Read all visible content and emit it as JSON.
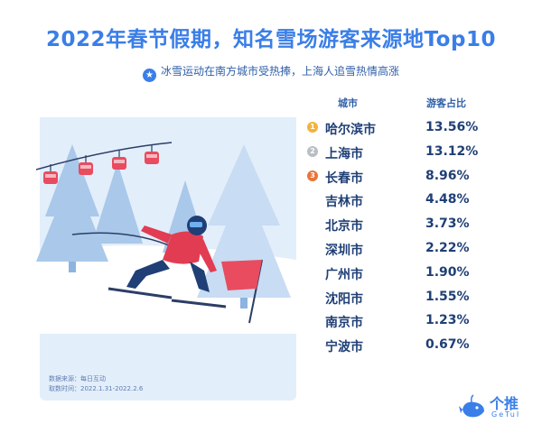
{
  "title": "2022年春节假期，知名雪场游客来源地Top10",
  "subtitle": "冰雪运动在南方城市受热捧，上海人追雪热情高涨",
  "colors": {
    "accent": "#3a7ee8",
    "dark_text": "#1f3f76",
    "gold": "#f2b33d",
    "silver": "#b9bec6",
    "bronze": "#e8753a"
  },
  "chart_data": {
    "type": "table",
    "columns": [
      "城市",
      "游客占比"
    ],
    "rows": [
      {
        "rank": "1",
        "city": "哈尔滨市",
        "share": "13.56%",
        "medal": "gold"
      },
      {
        "rank": "2",
        "city": "上海市",
        "share": "13.12%",
        "medal": "silver"
      },
      {
        "rank": "3",
        "city": "长春市",
        "share": "8.96%",
        "medal": "bronze"
      },
      {
        "rank": "",
        "city": "吉林市",
        "share": "4.48%",
        "medal": ""
      },
      {
        "rank": "",
        "city": "北京市",
        "share": "3.73%",
        "medal": ""
      },
      {
        "rank": "",
        "city": "深圳市",
        "share": "2.22%",
        "medal": ""
      },
      {
        "rank": "",
        "city": "广州市",
        "share": "1.90%",
        "medal": ""
      },
      {
        "rank": "",
        "city": "沈阳市",
        "share": "1.55%",
        "medal": ""
      },
      {
        "rank": "",
        "city": "南京市",
        "share": "1.23%",
        "medal": ""
      },
      {
        "rank": "",
        "city": "宁波市",
        "share": "0.67%",
        "medal": ""
      }
    ]
  },
  "source": {
    "line1": "数据来源：每日互动",
    "line2": "取数时间：2022.1.31-2022.2.6"
  },
  "logo": {
    "brand": "个推",
    "brand_sub": "GeTuI"
  },
  "icons": {
    "subtitle_icon": "star-icon",
    "logo_icon": "whale-icon"
  }
}
